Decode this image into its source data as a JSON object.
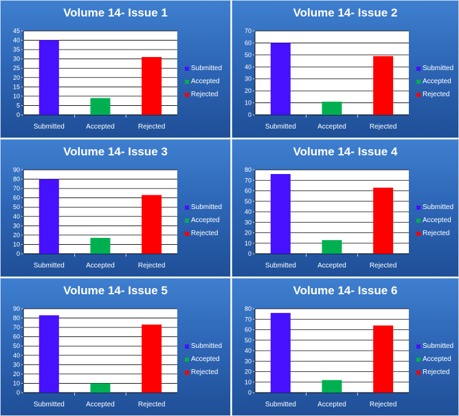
{
  "colors": {
    "Submitted": "#4511ff",
    "Accepted": "#00b050",
    "Rejected": "#ff0000"
  },
  "chart_data": [
    {
      "type": "bar",
      "title": "Volume 14- Issue 1",
      "categories": [
        "Submitted",
        "Accepted",
        "Rejected"
      ],
      "values": [
        40,
        9,
        31
      ],
      "ylim": [
        0,
        45
      ],
      "ystep": 5,
      "legend": [
        "Submitted",
        "Accepted",
        "Rejected"
      ],
      "legend_position": "right",
      "grid": true
    },
    {
      "type": "bar",
      "title": "Volume 14- Issue 2",
      "categories": [
        "Submitted",
        "Accepted",
        "Rejected"
      ],
      "values": [
        60,
        11,
        49
      ],
      "ylim": [
        0,
        70
      ],
      "ystep": 10,
      "legend": [
        "Submitted",
        "Accepted",
        "Rejected"
      ],
      "legend_position": "right",
      "grid": true
    },
    {
      "type": "bar",
      "title": "Volume 14- Issue 3",
      "categories": [
        "Submitted",
        "Accepted",
        "Rejected"
      ],
      "values": [
        80,
        17,
        63
      ],
      "ylim": [
        0,
        90
      ],
      "ystep": 10,
      "legend": [
        "Submitted",
        "Accepted",
        "Rejected"
      ],
      "legend_position": "right",
      "grid": true
    },
    {
      "type": "bar",
      "title": "Volume 14- Issue 4",
      "categories": [
        "Submitted",
        "Accepted",
        "Rejected"
      ],
      "values": [
        76,
        13,
        63
      ],
      "ylim": [
        0,
        80
      ],
      "ystep": 10,
      "legend": [
        "Submitted",
        "Accepted",
        "Rejected"
      ],
      "legend_position": "right",
      "grid": true
    },
    {
      "type": "bar",
      "title": "Volume 14- Issue 5",
      "categories": [
        "Submitted",
        "Accepted",
        "Rejected"
      ],
      "values": [
        83,
        10,
        73
      ],
      "ylim": [
        0,
        90
      ],
      "ystep": 10,
      "legend": [
        "Submitted",
        "Accepted",
        "Rejected"
      ],
      "legend_position": "right",
      "grid": true
    },
    {
      "type": "bar",
      "title": "Volume 14- Issue 6",
      "categories": [
        "Submitted",
        "Accepted",
        "Rejected"
      ],
      "values": [
        76,
        12,
        64
      ],
      "ylim": [
        0,
        80
      ],
      "ystep": 10,
      "legend": [
        "Submitted",
        "Accepted",
        "Rejected"
      ],
      "legend_position": "right",
      "grid": true
    }
  ]
}
